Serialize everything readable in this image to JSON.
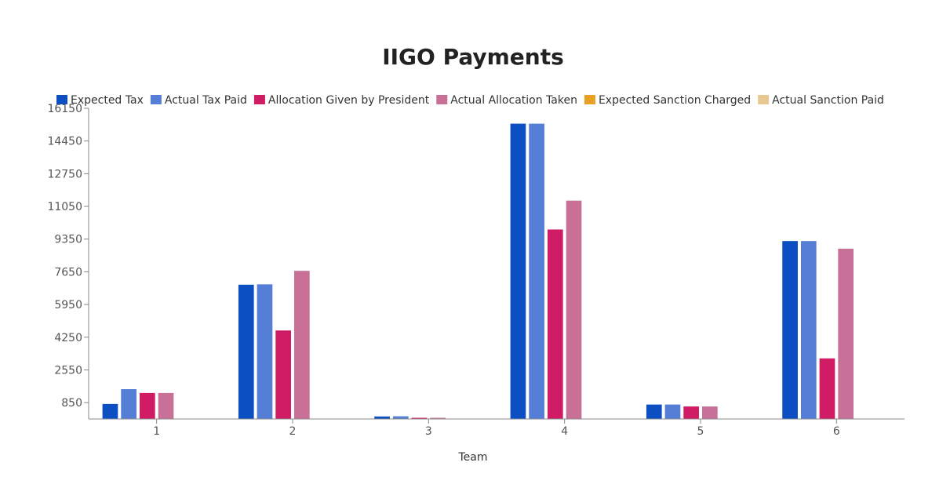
{
  "chart_data": {
    "type": "bar",
    "title": "IIGO Payments",
    "xlabel": "Team",
    "ylabel": "",
    "categories": [
      "1",
      "2",
      "3",
      "4",
      "5",
      "6"
    ],
    "ylim": [
      0,
      16150
    ],
    "yticks": [
      850,
      2550,
      4250,
      5950,
      7650,
      9350,
      11050,
      12750,
      14450,
      16150
    ],
    "grid": false,
    "legend_position": "top",
    "series": [
      {
        "name": "Expected Tax",
        "color": "#0b4fc3",
        "values": [
          780,
          6980,
          130,
          15350,
          750,
          9250
        ]
      },
      {
        "name": "Actual Tax Paid",
        "color": "#557ed6",
        "values": [
          1550,
          7000,
          140,
          15350,
          750,
          9250
        ]
      },
      {
        "name": "Allocation Given by President",
        "color": "#d01c64",
        "values": [
          1350,
          4600,
          60,
          9850,
          650,
          3150
        ]
      },
      {
        "name": "Actual Allocation Taken",
        "color": "#c87098",
        "values": [
          1350,
          7700,
          60,
          11350,
          650,
          8850
        ]
      },
      {
        "name": "Expected Sanction Charged",
        "color": "#e8a020",
        "values": [
          0,
          0,
          0,
          0,
          0,
          0
        ]
      },
      {
        "name": "Actual Sanction Paid",
        "color": "#e8c892",
        "values": [
          0,
          0,
          0,
          0,
          0,
          0
        ]
      }
    ]
  }
}
